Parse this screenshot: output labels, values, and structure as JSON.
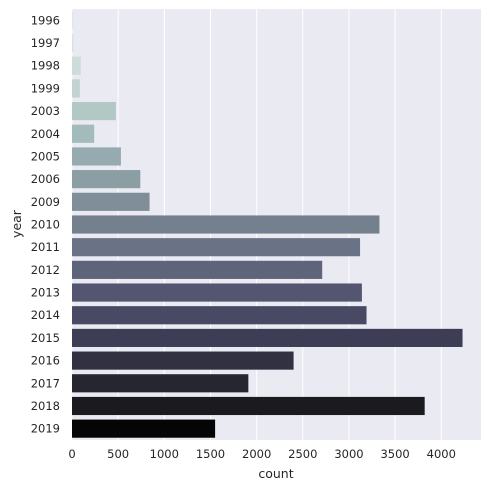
{
  "chart_data": {
    "type": "bar",
    "orientation": "horizontal",
    "xlabel": "count",
    "ylabel": "year",
    "categories": [
      "1996",
      "1997",
      "1998",
      "1999",
      "2003",
      "2004",
      "2005",
      "2006",
      "2009",
      "2010",
      "2011",
      "2012",
      "2013",
      "2014",
      "2015",
      "2016",
      "2017",
      "2018",
      "2019"
    ],
    "values": [
      20,
      15,
      95,
      85,
      475,
      240,
      530,
      740,
      840,
      3330,
      3120,
      2710,
      3140,
      3190,
      4230,
      2400,
      1910,
      3820,
      1550
    ],
    "colors": [
      "#dfeae7",
      "#d6e3e0",
      "#ccdcd8",
      "#c1d2cf",
      "#b2c8c5",
      "#a3bbbb",
      "#96abaf",
      "#8a9ea3",
      "#7f8e98",
      "#74808d",
      "#6a7286",
      "#5e6479",
      "#53566e",
      "#484962",
      "#3d3d55",
      "#313142",
      "#262630",
      "#1a1a1f",
      "#050505"
    ],
    "xticks": [
      0,
      500,
      1000,
      1500,
      2000,
      2500,
      3000,
      3500,
      4000
    ],
    "xlim": [
      0,
      4430
    ],
    "grid": true,
    "background": "#eaeaf2"
  }
}
